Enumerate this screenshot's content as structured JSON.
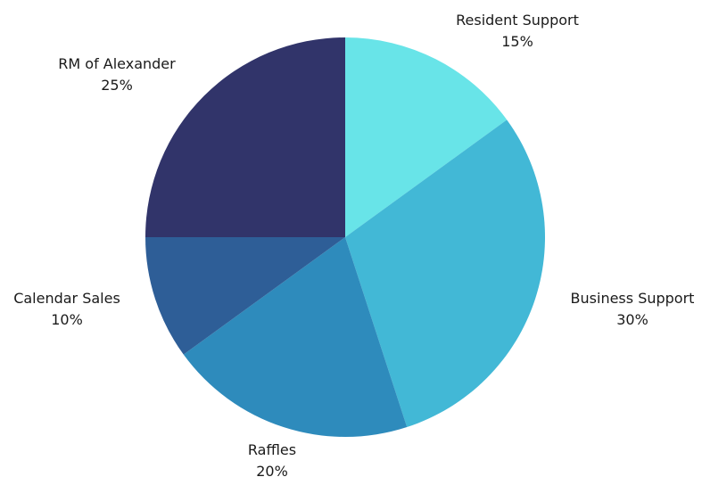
{
  "chart_data": {
    "type": "pie",
    "title": "",
    "categories": [
      "Resident Support",
      "Business Support",
      "Raffles",
      "Calendar Sales",
      "RM of Alexander"
    ],
    "values": [
      15,
      30,
      20,
      10,
      25
    ],
    "value_labels": [
      "15%",
      "30%",
      "20%",
      "10%",
      "25%"
    ],
    "colors": [
      "#68E4E8",
      "#42B8D6",
      "#2E8BBC",
      "#2E5E97",
      "#31346A"
    ],
    "start_angle_deg": 0,
    "direction": "clockwise",
    "legend": "none"
  }
}
